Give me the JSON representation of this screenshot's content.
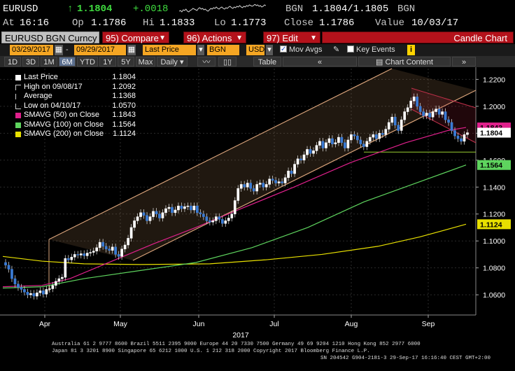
{
  "ticker": {
    "symbol": "EURUSD",
    "arrow": "↑",
    "last": "1.1804",
    "change": "+.0018",
    "source_label_1": "BGN",
    "bid_ask": "1.1804/1.1805",
    "source_label_2": "BGN",
    "time_label": "At",
    "time": "16:16",
    "open_label": "Op",
    "open": "1.1786",
    "high_label": "Hi",
    "high": "1.1833",
    "low_label": "Lo",
    "low": "1.1773",
    "close_label": "Close",
    "close": "1.1786",
    "value_label": "Value",
    "value_date": "10/03/17"
  },
  "function_bar": {
    "ticker_field": "EURUSD BGN Curncy",
    "compare": "95) Compare",
    "actions": "96) Actions",
    "edit": "97) Edit",
    "chart_type": "Candle Chart"
  },
  "controls": {
    "start_date": "03/29/2017",
    "end_date": "09/29/2017",
    "field": "Last Price",
    "source": "BGN",
    "currency": "USD",
    "mov_avgs_label": "Mov Avgs",
    "mov_avgs_checked": true,
    "key_events_label": "Key Events",
    "key_events_checked": false,
    "info_badge": "i"
  },
  "range_bar": {
    "ranges": [
      "1D",
      "3D",
      "1M",
      "6M",
      "YTD",
      "1Y",
      "5Y",
      "Max"
    ],
    "active_range": "6M",
    "frequency": "Daily",
    "table_label": "Table",
    "collapse_glyph": "«",
    "chart_content_label": "Chart Content",
    "expand_glyph": "»"
  },
  "legend": [
    {
      "label": "Last Price",
      "value": "1.1804",
      "color": "#ffffff"
    },
    {
      "label": "High on 09/08/17",
      "value": "1.2092",
      "color": ""
    },
    {
      "label": "Average",
      "value": "1.1368",
      "color": ""
    },
    {
      "label": "Low on 04/10/17",
      "value": "1.0570",
      "color": ""
    },
    {
      "label": "SMAVG (50) on Close",
      "value": "1.1843",
      "color": "#e0208c"
    },
    {
      "label": "SMAVG (100) on Close",
      "value": "1.1564",
      "color": "#5ed45e"
    },
    {
      "label": "SMAVG (200) on Close",
      "value": "1.1124",
      "color": "#e8e000"
    }
  ],
  "chart_data": {
    "type": "candlestick",
    "x_ticks": [
      "Apr",
      "May",
      "Jun",
      "Jul",
      "Aug",
      "Sep"
    ],
    "x_year_label": "2017",
    "y_ticks": [
      "1.2200",
      "1.2000",
      "1.1800",
      "1.1600",
      "1.1400",
      "1.1200",
      "1.1000",
      "1.0800",
      "1.0600"
    ],
    "ylim": [
      1.045,
      1.228
    ],
    "x_range": [
      "03/29/2017",
      "10/03/2017"
    ],
    "grid": true,
    "price_labels": [
      {
        "value": "1.1843",
        "color": "#e0208c",
        "text_color": "#000000"
      },
      {
        "value": "1.1804",
        "color": "#ffffff",
        "text_color": "#000000"
      },
      {
        "value": "1.1564",
        "color": "#5ed45e",
        "text_color": "#000000"
      },
      {
        "value": "1.1124",
        "color": "#e8e000",
        "text_color": "#000000"
      }
    ],
    "closes": [
      1.082,
      1.079,
      1.072,
      1.068,
      1.0655,
      1.064,
      1.062,
      1.06,
      1.061,
      1.059,
      1.0615,
      1.063,
      1.0605,
      1.064,
      1.0645,
      1.067,
      1.07,
      1.072,
      1.073,
      1.087,
      1.086,
      1.088,
      1.09,
      1.0895,
      1.0905,
      1.089,
      1.091,
      1.0915,
      1.0925,
      1.095,
      1.099,
      1.096,
      1.094,
      1.093,
      1.0955,
      1.09,
      1.0885,
      1.094,
      1.097,
      1.102,
      1.11,
      1.115,
      1.118,
      1.121,
      1.119,
      1.115,
      1.118,
      1.122,
      1.12,
      1.117,
      1.121,
      1.124,
      1.125,
      1.121,
      1.123,
      1.126,
      1.124,
      1.1255,
      1.126,
      1.123,
      1.126,
      1.121,
      1.12,
      1.118,
      1.115,
      1.114,
      1.115,
      1.118,
      1.116,
      1.113,
      1.115,
      1.117,
      1.12,
      1.13,
      1.139,
      1.142,
      1.14,
      1.143,
      1.139,
      1.137,
      1.142,
      1.143,
      1.14,
      1.142,
      1.146,
      1.145,
      1.143,
      1.144,
      1.143,
      1.147,
      1.152,
      1.15,
      1.157,
      1.161,
      1.16,
      1.164,
      1.168,
      1.165,
      1.167,
      1.171,
      1.174,
      1.169,
      1.173,
      1.176,
      1.172,
      1.173,
      1.177,
      1.173,
      1.169,
      1.175,
      1.179,
      1.178,
      1.175,
      1.172,
      1.17,
      1.174,
      1.177,
      1.179,
      1.176,
      1.18,
      1.179,
      1.183,
      1.188,
      1.192,
      1.186,
      1.182,
      1.19,
      1.196,
      1.199,
      1.204,
      1.207,
      1.2,
      1.196,
      1.193,
      1.195,
      1.192,
      1.196,
      1.198,
      1.194,
      1.196,
      1.19,
      1.188,
      1.182,
      1.178,
      1.176,
      1.174,
      1.179,
      1.1804
    ]
  },
  "footer": {
    "line1": "Australia 61 2 9777 8600 Brazil 5511 2395 9000 Europe 44 20 7330 7500 Germany 49 69 9204 1210 Hong Kong 852 2977 6000",
    "line2": "Japan 81 3 3201 8900      Singapore 65 6212 1000      U.S. 1 212 318 2000      Copyright 2017 Bloomberg Finance L.P.",
    "line3": "SN 204542 G904-2181-3 29-Sep-17 16:16:40 CEST GMT+2:00"
  }
}
